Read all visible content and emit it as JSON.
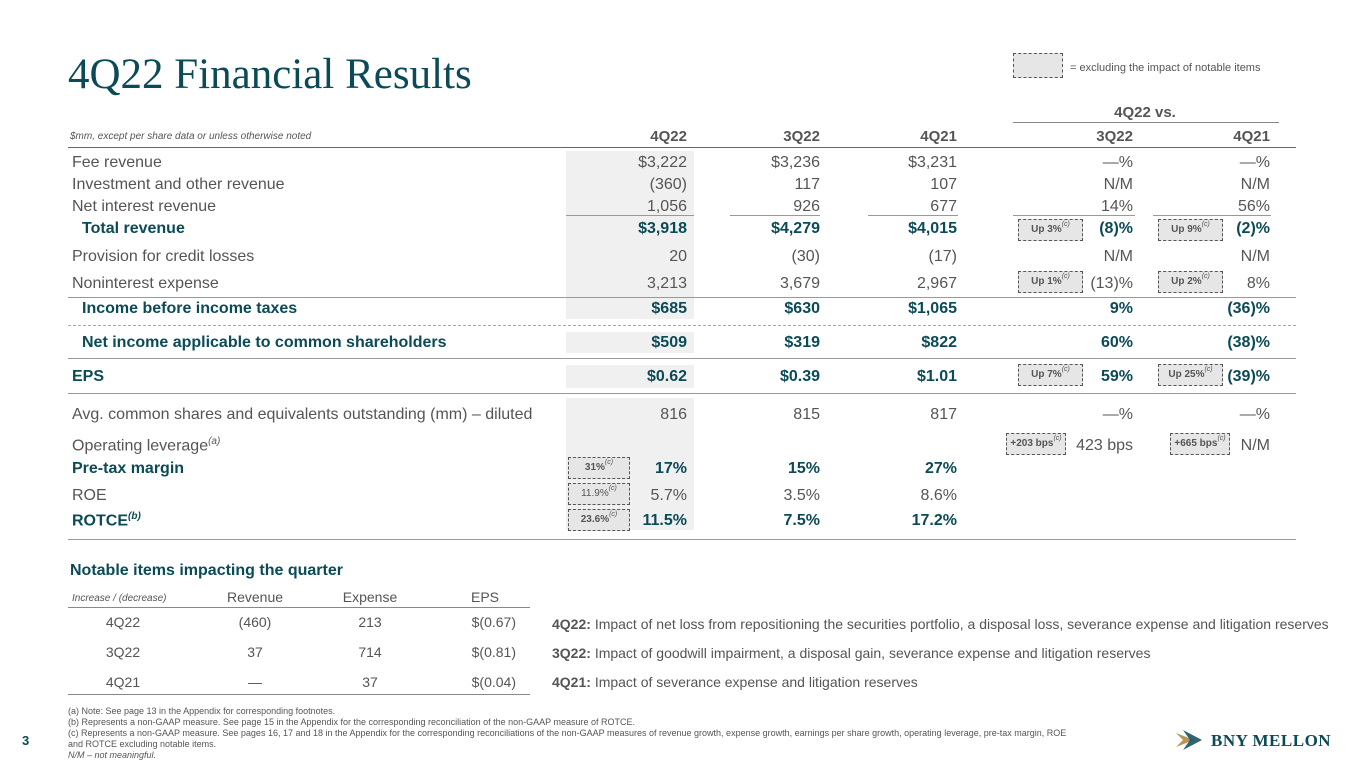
{
  "title": "4Q22 Financial Results",
  "legend": "= excluding the impact of notable items",
  "table": {
    "comparison_header": "4Q22 vs.",
    "unit_note": "$mm, except per share data or unless otherwise noted",
    "columns": [
      "4Q22",
      "3Q22",
      "4Q21",
      "3Q22",
      "4Q21"
    ],
    "rows": [
      {
        "label": "Fee revenue",
        "v": [
          "$3,222",
          "$3,236",
          "$3,231",
          "—%",
          "—%"
        ]
      },
      {
        "label": "Investment and other revenue",
        "v": [
          "(360)",
          "117",
          "107",
          "N/M",
          "N/M"
        ]
      },
      {
        "label": "Net interest revenue",
        "v": [
          "1,056",
          "926",
          "677",
          "14%",
          "56%"
        ]
      },
      {
        "label": "Total revenue",
        "v": [
          "$3,918",
          "$4,279",
          "$4,015",
          "(8)%",
          "(2)%"
        ],
        "b1": "Up 3%",
        "b2": "Up 9%"
      },
      {
        "label": "Provision for credit losses",
        "v": [
          "20",
          "(30)",
          "(17)",
          "N/M",
          "N/M"
        ]
      },
      {
        "label": "Noninterest expense",
        "v": [
          "3,213",
          "3,679",
          "2,967",
          "(13)%",
          "8%"
        ],
        "b1": "Up 1%",
        "b2": "Up 2%"
      },
      {
        "label": "Income before income taxes",
        "v": [
          "$685",
          "$630",
          "$1,065",
          "9%",
          "(36)%"
        ]
      },
      {
        "label": "Net income applicable to common shareholders",
        "v": [
          "$509",
          "$319",
          "$822",
          "60%",
          "(38)%"
        ]
      },
      {
        "label": "EPS",
        "v": [
          "$0.62",
          "$0.39",
          "$1.01",
          "59%",
          "(39)%"
        ],
        "b1": "Up 7%",
        "b2": "Up 25%"
      },
      {
        "label": "Avg. common shares and equivalents outstanding (mm) – diluted",
        "v": [
          "816",
          "815",
          "817",
          "—%",
          "—%"
        ]
      },
      {
        "label": "Operating leverage",
        "sup": "(a)",
        "v": [
          "",
          "",
          "",
          "423 bps",
          "N/M"
        ],
        "b1": "+203 bps",
        "b2": "+665 bps"
      },
      {
        "label": "Pre-tax margin",
        "v": [
          "17%",
          "15%",
          "27%",
          "",
          ""
        ],
        "b0": "31%"
      },
      {
        "label": "ROE",
        "v": [
          "5.7%",
          "3.5%",
          "8.6%",
          "",
          ""
        ],
        "b0": "11.9%"
      },
      {
        "label": "ROTCE",
        "sup": "(b)",
        "v": [
          "11.5%",
          "7.5%",
          "17.2%",
          "",
          ""
        ],
        "b0": "23.6%"
      }
    ],
    "badge_sup": "(c)"
  },
  "notable": {
    "heading": "Notable items impacting the quarter",
    "col_note": "Increase / (decrease)",
    "columns": [
      "Revenue",
      "Expense",
      "EPS"
    ],
    "rows": [
      {
        "q": "4Q22",
        "rev": "(460)",
        "exp": "213",
        "eps": "$(0.67)",
        "dlabel": "4Q22:",
        "desc": "Impact of net loss from repositioning the securities portfolio, a disposal loss, severance expense and litigation reserves"
      },
      {
        "q": "3Q22",
        "rev": "37",
        "exp": "714",
        "eps": "$(0.81)",
        "dlabel": "3Q22:",
        "desc": "Impact of goodwill impairment, a disposal gain, severance expense and litigation reserves"
      },
      {
        "q": "4Q21",
        "rev": "—",
        "exp": "37",
        "eps": "$(0.04)",
        "dlabel": "4Q21:",
        "desc": "Impact of severance expense and litigation reserves"
      }
    ]
  },
  "footnotes": {
    "a": "(a) Note: See page 13 in the Appendix for corresponding footnotes.",
    "b": "(b) Represents a non-GAAP measure. See page 15 in the Appendix for the corresponding reconciliation of the non-GAAP measure of ROTCE.",
    "c1": "(c) Represents a non-GAAP measure. See pages 16, 17 and 18 in the Appendix for the corresponding reconciliations of the non-GAAP measures of revenue growth, expense growth, earnings per share growth, operating leverage, pre-tax margin, ROE",
    "c2": "and ROTCE excluding notable items.",
    "nm": "N/M – not meaningful."
  },
  "page_number": "3",
  "logo": "BNY MELLON",
  "colors": {
    "teal": "#0b4a57",
    "shade": "#f0f0f0",
    "badge": "#e6e6e6",
    "gold": "#b8965a"
  }
}
